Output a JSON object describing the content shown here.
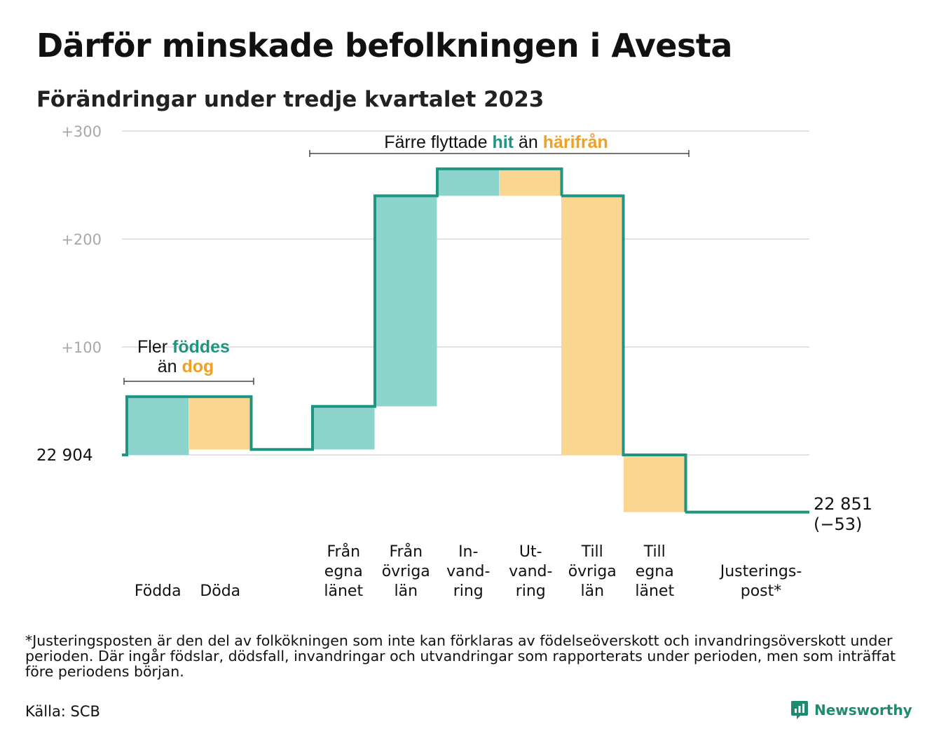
{
  "title": "Därför minskade befolkningen i Avesta",
  "subtitle": "Förändringar under tredje kvartalet 2023",
  "chart_data": {
    "type": "waterfall",
    "baseline_label": "22  904",
    "baseline": 22904,
    "yaxis": {
      "ticks": [
        "+100",
        "+200",
        "+300"
      ],
      "tick_values": [
        100,
        200,
        300
      ],
      "ylim": [
        -60,
        300
      ],
      "grid": true
    },
    "steps": [
      {
        "label_lines": [
          "Födda"
        ],
        "change": 54,
        "kind": "in"
      },
      {
        "label_lines": [
          "Döda"
        ],
        "change": -49,
        "kind": "out"
      },
      {
        "label_lines": [
          "Från",
          "egna",
          "länet"
        ],
        "change": 40,
        "kind": "in"
      },
      {
        "label_lines": [
          "Från",
          "övriga",
          "län"
        ],
        "change": 195,
        "kind": "in"
      },
      {
        "label_lines": [
          "In-",
          "vand-",
          "ring"
        ],
        "change": 25,
        "kind": "in"
      },
      {
        "label_lines": [
          "Ut-",
          "vand-",
          "ring"
        ],
        "change": -25,
        "kind": "out"
      },
      {
        "label_lines": [
          "Till",
          "övriga",
          "län"
        ],
        "change": -240,
        "kind": "out"
      },
      {
        "label_lines": [
          "Till",
          "egna",
          "länet"
        ],
        "change": -53,
        "kind": "out"
      },
      {
        "label_lines": [
          "Justerings-",
          "post*"
        ],
        "change": 0,
        "kind": "adj"
      }
    ],
    "end_value_label": "22 851",
    "end_change_label": "(−53)",
    "annotations": [
      {
        "parts": [
          {
            "text": "Fler ",
            "style": "plain"
          },
          {
            "text": "föddes",
            "style": "in"
          }
        ],
        "parts2": [
          {
            "text": "än ",
            "style": "plain"
          },
          {
            "text": "dog",
            "style": "out"
          }
        ]
      },
      {
        "parts": [
          {
            "text": "Färre flyttade ",
            "style": "plain"
          },
          {
            "text": "hit",
            "style": "in"
          },
          {
            "text": " än ",
            "style": "plain"
          },
          {
            "text": "härifrån",
            "style": "out"
          }
        ]
      }
    ],
    "colors": {
      "in_fill": "#8dd5cc",
      "out_fill": "#fad691",
      "line": "#1f9483",
      "in_text": "#1f9483",
      "out_text": "#f0a024",
      "grid": "#e2e2e2",
      "tick": "#a8a8a8"
    }
  },
  "footnote": "*Justeringsposten är den del av folkökningen som inte kan förklaras av födelseöverskott och invandringsöverskott under perioden. Där ingår födslar, dödsfall, invandringar och utvandringar som rapporterats under perioden, men som inträffat före periodens början.",
  "source": "Källa: SCB",
  "brand": {
    "name": "Newsworthy",
    "icon": "bar-chart-badge-icon",
    "color": "#1f8a70"
  }
}
